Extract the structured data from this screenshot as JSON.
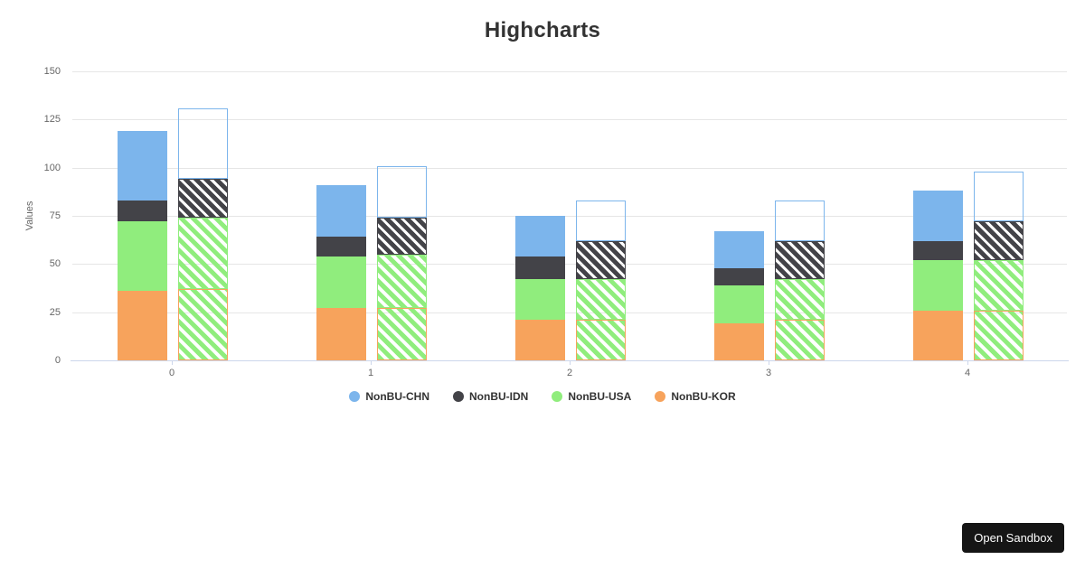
{
  "page": {
    "background": "#ffffff"
  },
  "chart_data": {
    "type": "bar",
    "title": "Highcharts",
    "ylabel": "Values",
    "xlabel": "",
    "stacked": true,
    "grid": true,
    "legend_position": "bottom",
    "ylim": [
      0,
      150
    ],
    "yticks": [
      0,
      25,
      50,
      75,
      100,
      125,
      150
    ],
    "categories": [
      "0",
      "1",
      "2",
      "3",
      "4"
    ],
    "bars_per_category": [
      "solid-stack",
      "hatched-stack"
    ],
    "stack_order_bottom_to_top": [
      "NonBU-KOR",
      "NonBU-USA",
      "NonBU-IDN",
      "NonBU-CHN"
    ],
    "series": [
      {
        "name": "NonBU-CHN",
        "color": "#7cb5ec",
        "solid_values": [
          36,
          27,
          21,
          19,
          26
        ],
        "hatched_values": [
          37,
          27,
          21,
          21,
          26
        ],
        "hatch_stripe_color": null,
        "hatch_style": "outline-only-white"
      },
      {
        "name": "NonBU-IDN",
        "color": "#434348",
        "solid_values": [
          11,
          10,
          12,
          9,
          10
        ],
        "hatched_values": [
          20,
          19,
          20,
          20,
          20
        ],
        "hatch_stripe_color": "#434348",
        "hatch_style": "diagonal-stripes"
      },
      {
        "name": "NonBU-USA",
        "color": "#90ed7d",
        "solid_values": [
          36,
          27,
          21,
          20,
          26
        ],
        "hatched_values": [
          37,
          28,
          21,
          21,
          26
        ],
        "hatch_stripe_color": "#90ed7d",
        "hatch_style": "diagonal-stripes"
      },
      {
        "name": "NonBU-KOR",
        "color": "#f7a35c",
        "solid_values": [
          36,
          27,
          21,
          19,
          26
        ],
        "hatched_values": [
          37,
          27,
          21,
          21,
          26
        ],
        "hatch_stripe_color": "#90ed7d",
        "hatch_style": "diagonal-stripes-orange-border"
      }
    ],
    "solid_stack_totals": [
      119,
      91,
      75,
      67,
      88
    ],
    "hatched_stack_totals": [
      131,
      101,
      83,
      83,
      98
    ],
    "colors": {
      "axis_line": "#ccd6eb",
      "gridline": "#e6e6e6",
      "tick_label": "#666666",
      "axis_title": "#666666",
      "title": "#333333",
      "legend_text": "#333333"
    }
  },
  "sandbox": {
    "button_label": "Open Sandbox",
    "button_bg": "#151515",
    "button_text_color": "#ffffff"
  }
}
